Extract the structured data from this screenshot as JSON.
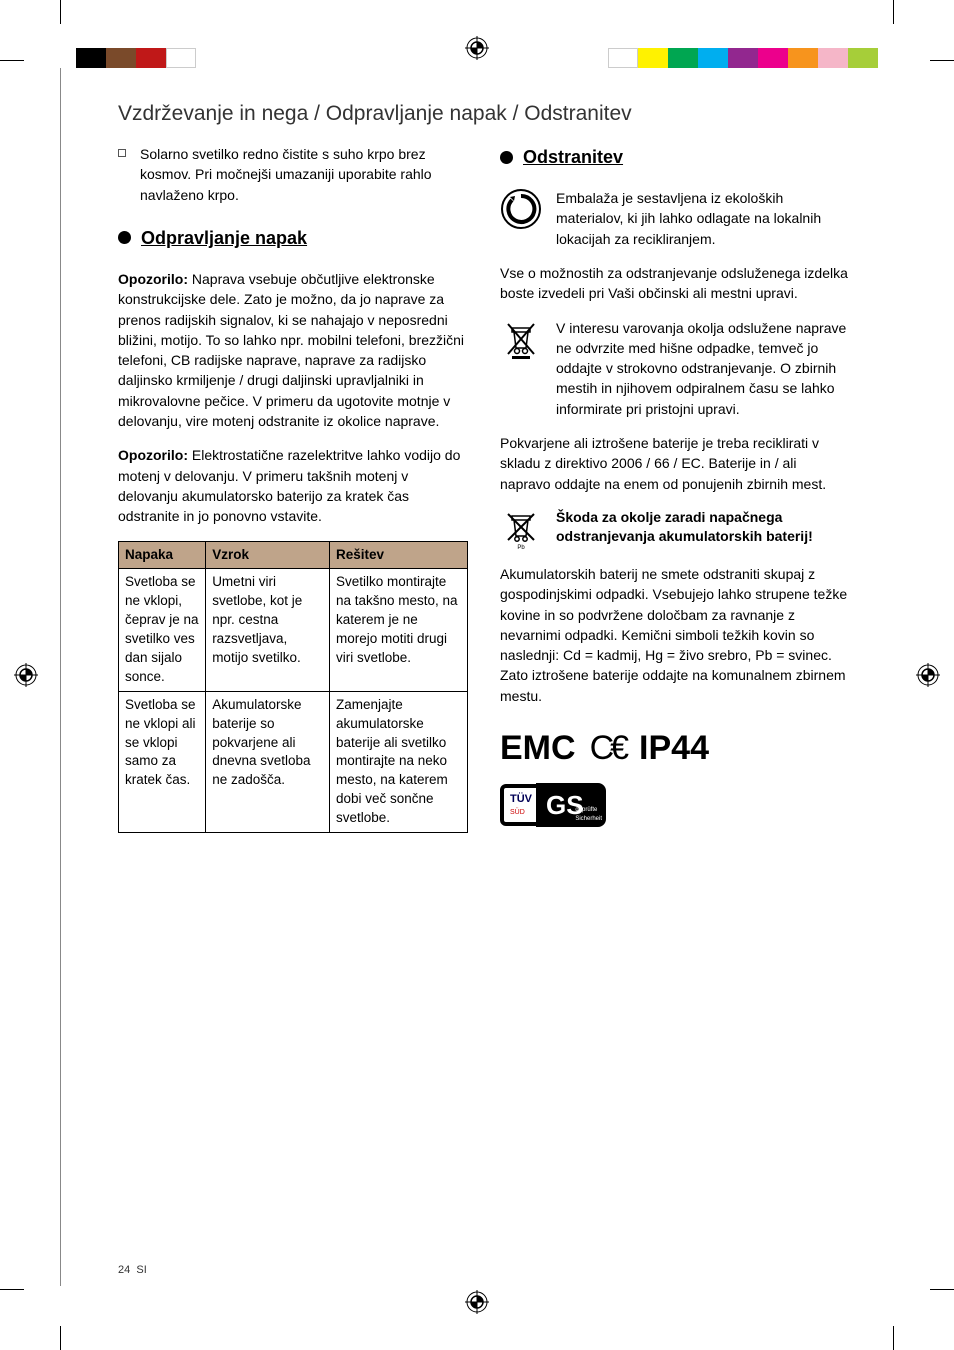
{
  "color_bars": {
    "left": [
      "#000000",
      "#7a4a2a",
      "#c01818",
      "#ffffff"
    ],
    "right": [
      "#ffffff",
      "#fff200",
      "#00a651",
      "#00aeef",
      "#92278f",
      "#ec008c",
      "#f7941d",
      "#f5b6c8",
      "#a6ce39"
    ]
  },
  "page_title": "Vzdrževanje in nega / Odpravljanje napak / Odstranitev",
  "left_col": {
    "intro_bullet": "Solarno svetilko redno čistite s suho krpo brez kosmov. Pri močnejši umazaniji uporabite rahlo navlaženo krpo.",
    "heading1": "Odpravljanje napak",
    "warn1_label": "Opozorilo:",
    "warn1_text": " Naprava vsebuje občutljive elektronske konstrukcijske dele. Zato je možno, da jo naprave za prenos radijskih signalov, ki se nahajajo v neposredni bližini, motijo. To so lahko npr. mobilni telefoni, brezžični telefoni, CB radijske naprave, naprave za radijsko daljinsko krmiljenje / drugi daljinski upravljalniki in mikrovalovne pečice. V primeru da ugotovite motnje v delovanju, vire motenj odstranite iz okolice naprave.",
    "warn2_label": "Opozorilo:",
    "warn2_text": " Elektrostatične razelektritve lahko vodijo do motenj v delovanju. V primeru takšnih motenj v delovanju akumulatorsko baterijo za kratek čas odstranite in jo ponovno vstavite.",
    "table": {
      "headers": [
        "Napaka",
        "Vzrok",
        "Rešitev"
      ],
      "rows": [
        [
          "Svetloba se ne vklopi, čeprav je na svetilko ves dan sijalo sonce.",
          "Umetni viri svetlobe, kot je npr. cestna razsvetljava, motijo svetilko.",
          "Svetilko monti­rajte na takšno mesto, na katerem je ne morejo motiti drugi viri svetlobe."
        ],
        [
          "Svetloba se ne vklopi ali se vklopi samo za kratek čas.",
          "Akumulatorske baterije so pokvarjene ali dnevna svetlo­ba ne zadošča.",
          "Zamenjajte akumulatorske baterije ali svetil­ko montirajte na neko mesto, na katerem dobi več sončne svetlobe."
        ]
      ]
    }
  },
  "right_col": {
    "heading1": "Odstranitev",
    "recycle_text": "Embalaža je sestavljena iz ekoloških materialov, ki jih lahko odlagate na lokalnih lokacijah za recikliranjem.",
    "para1": "Vse o možnostih za odstranjevanje odsluženega izdelka boste izvedeli pri Vaši občinski ali mestni upravi.",
    "weee_text": "V interesu varovanja okolja odslužene naprave ne odvrzite med hišne odpadke, temveč jo oddajte v strokovno odstranje­vanje. O zbirnih mestih in njihovem odpiralnem času se lahko informirate pri pristojni upravi.",
    "para2": "Pokvarjene ali iztrošene baterije je treba reciklirati v skladu z direktivo 2006 / 66 / EC. Baterije in / ali napravo oddajte na enem od ponujenih zbirnih mest.",
    "battwarn_heading": "Škoda za okolje zaradi napačnega odstranjevanja akumulatorskih baterij!",
    "para3": "Akumulatorskih baterij ne smete odstraniti skupaj z gospodinjskimi odpadki. Vsebujejo lahko strupene težke kovine in so podvržene določbam za ravnanje z nevarnimi odpadki. Kemični simboli težkih kovin so naslednji: Cd = kadmij, Hg = živo srebro, Pb = svinec. Zato iztrošene baterije oddajte na komunalnem zbirnem mestu.",
    "cert_emc": "EMC",
    "cert_ip": "IP44",
    "tuv_label": "TÜV"
  },
  "footer": {
    "page": "24",
    "lang": "SI"
  }
}
